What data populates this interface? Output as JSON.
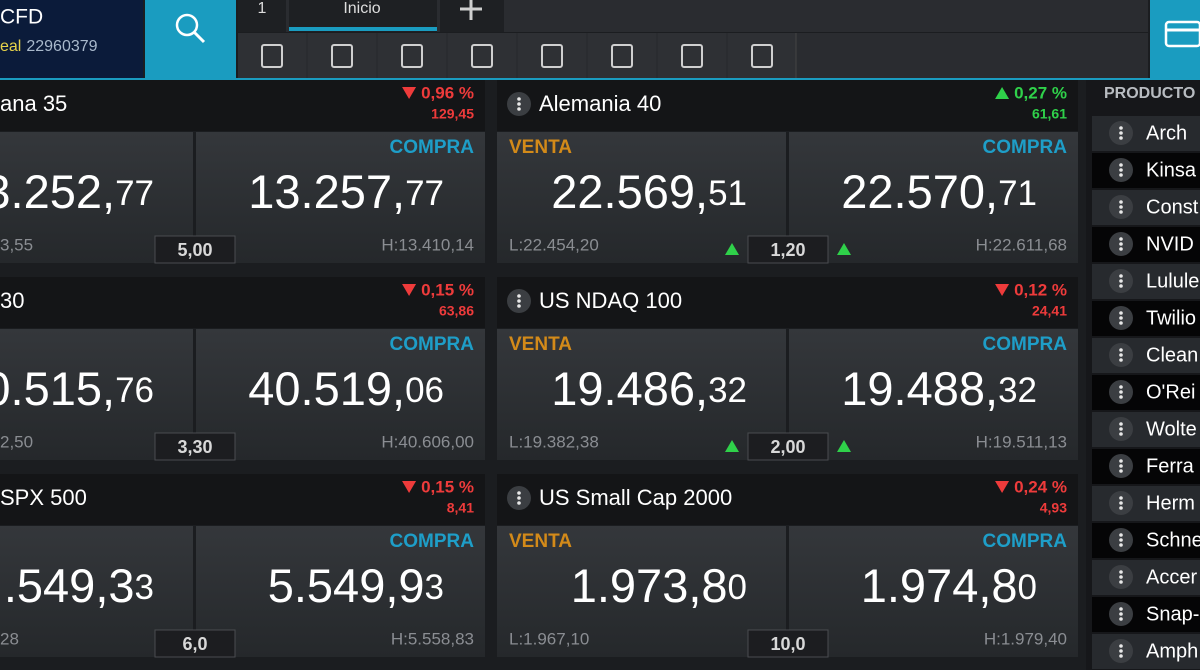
{
  "header": {
    "brand": "CFD",
    "account_type": "eal",
    "account_number": "22960379"
  },
  "tabs": [
    "1",
    "Inicio"
  ],
  "tiles": [
    {
      "column": "left",
      "name": "ana 35",
      "direction": "down",
      "change_pct": "0,96 %",
      "change_abs": "129,45",
      "sell_price": {
        "big": "3.252,",
        "small": "77"
      },
      "low": "3,55",
      "spread": "5,00",
      "buy_label": "COMPRA",
      "buy_price": {
        "big": "13.257,",
        "small": "77"
      },
      "high": "H:13.410,14"
    },
    {
      "column": "right",
      "name": "Alemania 40",
      "direction": "up",
      "change_pct": "0,27 %",
      "change_abs": "61,61",
      "sell_label": "VENTA",
      "sell_price": {
        "big": "22.569,",
        "small": "51"
      },
      "low": "L:22.454,20",
      "spread": "1,20",
      "spread_arrows": "up",
      "buy_label": "COMPRA",
      "buy_price": {
        "big": "22.570,",
        "small": "71"
      },
      "high": "H:22.611,68"
    },
    {
      "column": "left",
      "name": "30",
      "direction": "down",
      "change_pct": "0,15 %",
      "change_abs": "63,86",
      "sell_price": {
        "big": "0.515,",
        "small": "76"
      },
      "low": "2,50",
      "spread": "3,30",
      "buy_label": "COMPRA",
      "buy_price": {
        "big": "40.519,",
        "small": "06"
      },
      "high": "H:40.606,00"
    },
    {
      "column": "right",
      "name": "US NDAQ 100",
      "direction": "down",
      "change_pct": "0,12 %",
      "change_abs": "24,41",
      "sell_label": "VENTA",
      "sell_price": {
        "big": "19.486,",
        "small": "32"
      },
      "low": "L:19.382,38",
      "spread": "2,00",
      "spread_arrows": "up",
      "buy_label": "COMPRA",
      "buy_price": {
        "big": "19.488,",
        "small": "32"
      },
      "high": "H:19.511,13"
    },
    {
      "column": "left",
      "name": "SPX 500",
      "direction": "down",
      "change_pct": "0,15 %",
      "change_abs": "8,41",
      "sell_price": {
        "big": ".549,3",
        "small": "3"
      },
      "low": "28",
      "spread": "6,0",
      "buy_label": "COMPRA",
      "buy_price": {
        "big": "5.549,9",
        "small": "3"
      },
      "high": "H:5.558,83"
    },
    {
      "column": "right",
      "name": "US Small Cap 2000",
      "direction": "down",
      "change_pct": "0,24 %",
      "change_abs": "4,93",
      "sell_label": "VENTA",
      "sell_price": {
        "big": "1.973,8",
        "small": "0"
      },
      "low": "L:1.967,10",
      "spread": "10,0",
      "buy_label": "COMPRA",
      "buy_price": {
        "big": "1.974,8",
        "small": "0"
      },
      "high": "H:1.979,40"
    }
  ],
  "products": {
    "title": "PRODUCTO",
    "items": [
      "Arch",
      "Kinsa",
      "Const",
      "NVID",
      "Lulule",
      "Twilio",
      "Clean",
      "O'Rei",
      "Wolte",
      "Ferra",
      "Herm",
      "Schne",
      "Accer",
      "Snap-",
      "Amph"
    ]
  }
}
